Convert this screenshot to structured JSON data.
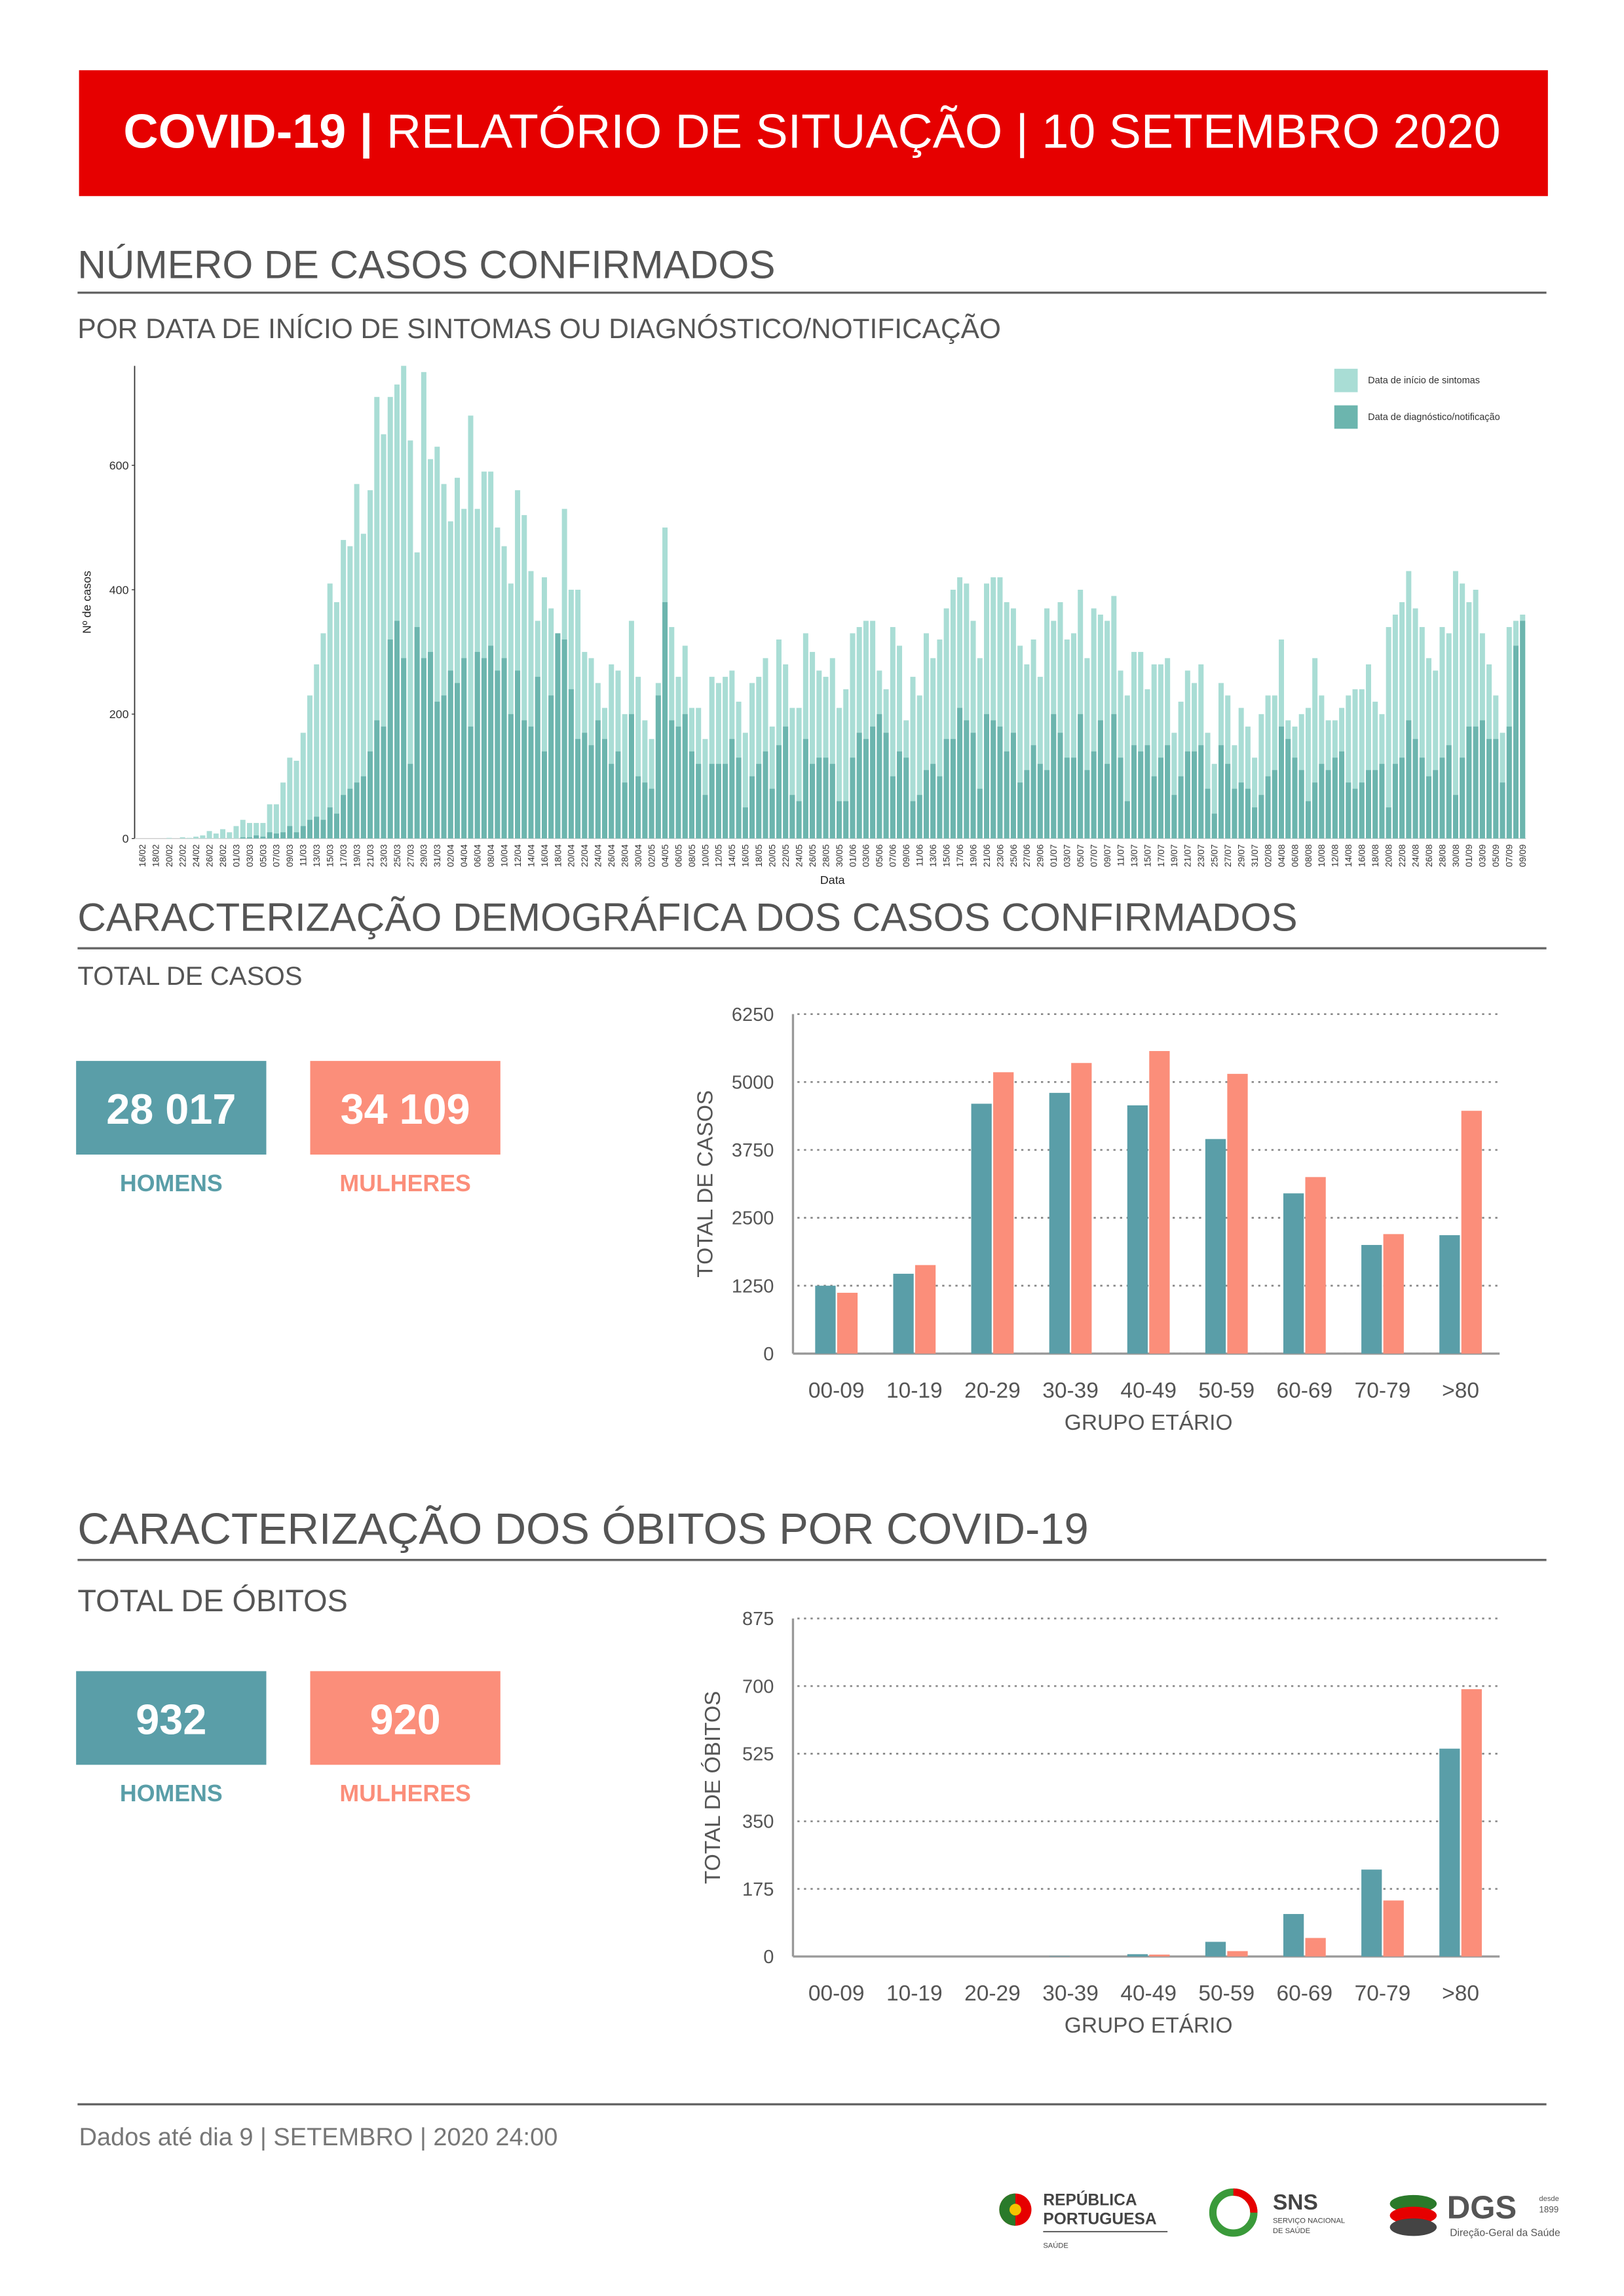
{
  "header": {
    "title_bold": "COVID-19 |",
    "title_rest": "RELATÓRIO DE SITUAÇÃO | 10 SETEMBRO 2020"
  },
  "section1": {
    "title": "NÚMERO DE CASOS CONFIRMADOS",
    "subtitle": "POR DATA DE INÍCIO DE SINTOMAS OU DIAGNÓSTICO/NOTIFICAÇÃO"
  },
  "section2": {
    "title": "CARACTERIZAÇÃO DEMOGRÁFICA DOS CASOS CONFIRMADOS",
    "subtitle": "TOTAL DE CASOS",
    "men": {
      "value": "28 017",
      "label": "HOMENS"
    },
    "women": {
      "value": "34 109",
      "label": "MULHERES"
    }
  },
  "section3": {
    "title": "CARACTERIZAÇÃO DOS ÓBITOS POR COVID-19",
    "subtitle": "TOTAL DE ÓBITOS",
    "men": {
      "value": "932",
      "label": "HOMENS"
    },
    "women": {
      "value": "920",
      "label": "MULHERES"
    }
  },
  "footer": {
    "note": "Dados até dia 9 | SETEMBRO | 2020 24:00",
    "logos": {
      "rp1": "REPÚBLICA",
      "rp2": "PORTUGUESA",
      "rp3": "SAÚDE",
      "sns": "SNS",
      "sns1": "SERVIÇO NACIONAL",
      "sns2": "DE SAÚDE",
      "dgs": "DGS",
      "dgs_since": "desde",
      "dgs_year": "1899",
      "dgs_name": "Direção-Geral da Saúde"
    }
  },
  "chart_data": [
    {
      "type": "bar",
      "barmode": "overlay",
      "y_label": "Nº de casos",
      "x_label": "Data",
      "legend": "top-right",
      "grid": false,
      "ylim": [
        0,
        760
      ],
      "yticks": [
        0,
        200,
        400,
        600
      ],
      "categories": [
        "16/02",
        null,
        "18/02",
        null,
        "20/02",
        null,
        "22/02",
        null,
        "24/02",
        null,
        "26/02",
        null,
        "28/02",
        null,
        "01/03",
        null,
        "03/03",
        null,
        "05/03",
        null,
        "07/03",
        null,
        "09/03",
        null,
        "11/03",
        null,
        "13/03",
        null,
        "15/03",
        null,
        "17/03",
        null,
        "19/03",
        null,
        "21/03",
        null,
        "23/03",
        null,
        "25/03",
        null,
        "27/03",
        null,
        "29/03",
        null,
        "31/03",
        null,
        "02/04",
        null,
        "04/04",
        null,
        "06/04",
        null,
        "08/04",
        null,
        "10/04",
        null,
        "12/04",
        null,
        "14/04",
        null,
        "16/04",
        null,
        "18/04",
        null,
        "20/04",
        null,
        "22/04",
        null,
        "24/04",
        null,
        "26/04",
        null,
        "28/04",
        null,
        "30/04",
        null,
        "02/05",
        null,
        "04/05",
        null,
        "06/05",
        null,
        "08/05",
        null,
        "10/05",
        null,
        "12/05",
        null,
        "14/05",
        null,
        "16/05",
        null,
        "18/05",
        null,
        "20/05",
        null,
        "22/05",
        null,
        "24/05",
        null,
        "26/05",
        null,
        "28/05",
        null,
        "30/05",
        null,
        "01/06",
        null,
        "03/06",
        null,
        "05/06",
        null,
        "07/06",
        null,
        "09/06",
        null,
        "11/06",
        null,
        "13/06",
        null,
        "15/06",
        null,
        "17/06",
        null,
        "19/06",
        null,
        "21/06",
        null,
        "23/06",
        null,
        "25/06",
        null,
        "27/06",
        null,
        "29/06",
        null,
        "01/07",
        null,
        "03/07",
        null,
        "05/07",
        null,
        "07/07",
        null,
        "09/07",
        null,
        "11/07",
        null,
        "13/07",
        null,
        "15/07",
        null,
        "17/07",
        null,
        "19/07",
        null,
        "21/07",
        null,
        "23/07",
        null,
        "25/07",
        null,
        "27/07",
        null,
        "29/07",
        null,
        "31/07",
        null,
        "02/08",
        null,
        "04/08",
        null,
        "06/08",
        null,
        "08/08",
        null,
        "10/08",
        null,
        "12/08",
        null,
        "14/08",
        null,
        "16/08",
        null,
        "18/08",
        null,
        "20/08",
        null,
        "22/08",
        null,
        "24/08",
        null,
        "26/08",
        null,
        "28/08",
        null,
        "30/08",
        null,
        "01/09",
        null,
        "03/09",
        null,
        "05/09",
        null,
        "07/09",
        null,
        "09/09"
      ],
      "series": [
        {
          "name": "Data de início de sintomas",
          "color": "#a9ddd5",
          "values": [
            0,
            0,
            0,
            0,
            1,
            0,
            2,
            1,
            3,
            5,
            12,
            8,
            15,
            10,
            20,
            30,
            25,
            25,
            25,
            55,
            55,
            90,
            130,
            125,
            170,
            230,
            280,
            330,
            410,
            380,
            480,
            470,
            570,
            490,
            560,
            710,
            650,
            710,
            730,
            760,
            640,
            460,
            750,
            610,
            630,
            570,
            510,
            580,
            530,
            680,
            530,
            590,
            590,
            500,
            470,
            410,
            560,
            520,
            430,
            350,
            420,
            370,
            330,
            530,
            400,
            400,
            300,
            290,
            250,
            210,
            280,
            270,
            200,
            350,
            260,
            190,
            160,
            250,
            500,
            340,
            260,
            310,
            210,
            210,
            160,
            260,
            250,
            260,
            270,
            220,
            170,
            250,
            260,
            290,
            180,
            320,
            280,
            210,
            210,
            330,
            300,
            270,
            260,
            290,
            210,
            240,
            330,
            340,
            350,
            350,
            270,
            240,
            340,
            310,
            190,
            260,
            230,
            330,
            290,
            320,
            370,
            400,
            420,
            410,
            350,
            290,
            410,
            420,
            420,
            380,
            370,
            310,
            280,
            320,
            260,
            370,
            350,
            380,
            320,
            330,
            400,
            290,
            370,
            360,
            350,
            390,
            270,
            230,
            300,
            300,
            240,
            280,
            280,
            290,
            170,
            220,
            270,
            250,
            280,
            170,
            120,
            250,
            230,
            150,
            210,
            180,
            130,
            200,
            230,
            230,
            320,
            190,
            180,
            200,
            210,
            290,
            230,
            190,
            190,
            210,
            230,
            240,
            240,
            280,
            220,
            200,
            340,
            360,
            380,
            430,
            370,
            340,
            290,
            270,
            340,
            330,
            430,
            410,
            380,
            400,
            330,
            280,
            230,
            170,
            340,
            350,
            360
          ]
        },
        {
          "name": "Data de diagnóstico/notificação",
          "color": "#6cb5ae",
          "values": [
            0,
            0,
            0,
            0,
            0,
            0,
            0,
            0,
            0,
            0,
            0,
            0,
            0,
            0,
            0,
            2,
            2,
            5,
            3,
            10,
            8,
            10,
            20,
            10,
            20,
            30,
            35,
            30,
            50,
            40,
            70,
            80,
            90,
            100,
            140,
            190,
            180,
            320,
            350,
            290,
            120,
            340,
            290,
            300,
            220,
            230,
            270,
            250,
            290,
            180,
            300,
            290,
            310,
            270,
            290,
            200,
            270,
            190,
            180,
            260,
            140,
            230,
            330,
            320,
            240,
            160,
            170,
            150,
            190,
            160,
            120,
            140,
            90,
            200,
            100,
            90,
            80,
            230,
            380,
            190,
            180,
            200,
            140,
            120,
            70,
            120,
            120,
            120,
            160,
            130,
            50,
            100,
            120,
            140,
            80,
            150,
            180,
            70,
            60,
            160,
            120,
            130,
            130,
            120,
            60,
            60,
            130,
            170,
            160,
            180,
            200,
            170,
            100,
            140,
            130,
            60,
            70,
            110,
            120,
            100,
            160,
            160,
            210,
            190,
            170,
            80,
            200,
            190,
            180,
            140,
            170,
            90,
            110,
            150,
            120,
            110,
            200,
            170,
            130,
            130,
            200,
            110,
            140,
            190,
            120,
            200,
            130,
            60,
            150,
            140,
            150,
            100,
            130,
            150,
            70,
            100,
            140,
            140,
            150,
            80,
            40,
            150,
            120,
            80,
            90,
            80,
            50,
            70,
            100,
            110,
            180,
            160,
            130,
            110,
            60,
            90,
            120,
            110,
            130,
            140,
            90,
            80,
            90,
            110,
            110,
            120,
            50,
            120,
            130,
            190,
            160,
            130,
            100,
            110,
            130,
            150,
            70,
            130,
            180,
            180,
            190,
            160,
            160,
            90,
            180,
            310,
            350
          ]
        }
      ]
    },
    {
      "type": "bar",
      "barmode": "group",
      "y_label": "TOTAL DE CASOS",
      "x_label": "GRUPO ETÁRIO",
      "grid": true,
      "ylim": [
        0,
        6250
      ],
      "yticks": [
        0,
        1250,
        2500,
        3750,
        5000,
        6250
      ],
      "categories": [
        "00-09",
        "10-19",
        "20-29",
        "30-39",
        "40-49",
        "50-59",
        "60-69",
        "70-79",
        ">80"
      ],
      "series": [
        {
          "color": "#5a9ea8",
          "values": [
            1250,
            1470,
            4600,
            4800,
            4570,
            3950,
            2950,
            2000,
            2180
          ]
        },
        {
          "color": "#fb8e7a",
          "values": [
            1120,
            1630,
            5180,
            5350,
            5570,
            5150,
            3250,
            2200,
            4470
          ]
        }
      ]
    },
    {
      "type": "bar",
      "barmode": "group",
      "y_label": "TOTAL DE ÓBITOS",
      "x_label": "GRUPO ETÁRIO",
      "grid": true,
      "ylim": [
        0,
        875
      ],
      "yticks": [
        0,
        175,
        350,
        525,
        700,
        875
      ],
      "categories": [
        "00-09",
        "10-19",
        "20-29",
        "30-39",
        "40-49",
        "50-59",
        "60-69",
        "70-79",
        ">80"
      ],
      "series": [
        {
          "color": "#5a9ea8",
          "values": [
            0,
            0,
            0,
            1,
            6,
            38,
            110,
            225,
            538
          ]
        },
        {
          "color": "#fb8e7a",
          "values": [
            0,
            0,
            0,
            0,
            5,
            14,
            48,
            145,
            692
          ]
        }
      ]
    }
  ]
}
